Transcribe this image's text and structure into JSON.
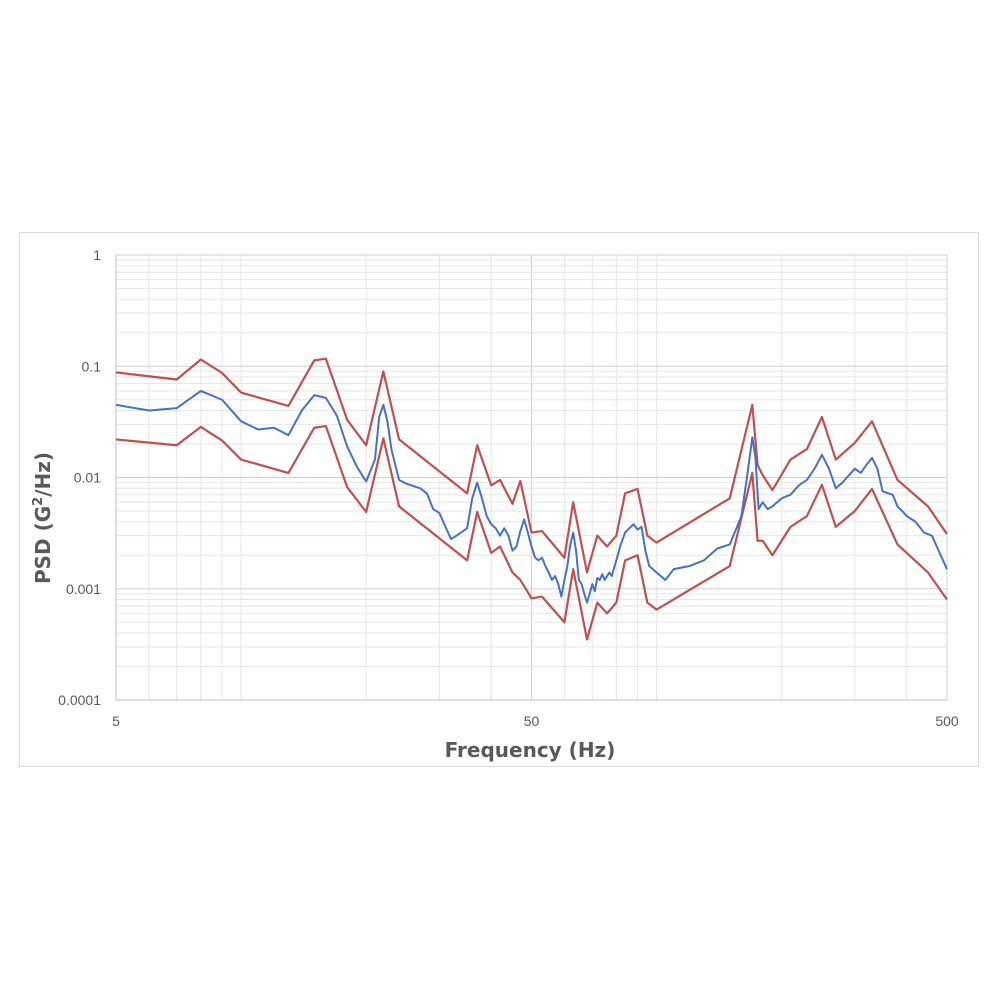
{
  "chart_data": {
    "type": "line",
    "title": "",
    "xlabel": "Frequency (Hz)",
    "ylabel_main": "PSD (G",
    "ylabel_sup": "2",
    "ylabel_tail": "/Hz)",
    "x_scale": "log",
    "y_scale": "log",
    "xlim": [
      5,
      500
    ],
    "ylim": [
      0.0001,
      1
    ],
    "x_ticks": [
      {
        "value": 5,
        "label": "5"
      },
      {
        "value": 50,
        "label": "50"
      },
      {
        "value": 500,
        "label": "500"
      }
    ],
    "y_ticks": [
      {
        "value": 1,
        "label": "1"
      },
      {
        "value": 0.1,
        "label": "0.1"
      },
      {
        "value": 0.01,
        "label": "0.01"
      },
      {
        "value": 0.001,
        "label": "0.001"
      },
      {
        "value": 0.0001,
        "label": "0.0001"
      }
    ],
    "grid": true,
    "legend": "none",
    "colors": {
      "measured": "#4472c4",
      "limits": "#c0504d",
      "grid_minor": "#e6e6e6",
      "grid_major": "#d0d0d0"
    },
    "series": [
      {
        "color": "#c0504d",
        "points": [
          [
            5,
            0.088
          ],
          [
            7,
            0.076
          ],
          [
            8,
            0.115
          ],
          [
            9,
            0.087
          ],
          [
            10,
            0.058
          ],
          [
            13,
            0.044
          ],
          [
            15,
            0.113
          ],
          [
            16,
            0.117
          ],
          [
            18,
            0.033
          ],
          [
            20,
            0.0195
          ],
          [
            22,
            0.09
          ],
          [
            24,
            0.022
          ],
          [
            35,
            0.0072
          ],
          [
            37,
            0.0195
          ],
          [
            40,
            0.0085
          ],
          [
            42,
            0.0095
          ],
          [
            45,
            0.0058
          ],
          [
            47,
            0.0093
          ],
          [
            50,
            0.0032
          ],
          [
            53,
            0.0033
          ],
          [
            60,
            0.0019
          ],
          [
            63,
            0.006
          ],
          [
            68,
            0.0014
          ],
          [
            72,
            0.003
          ],
          [
            76,
            0.0024
          ],
          [
            80,
            0.003
          ],
          [
            84,
            0.0072
          ],
          [
            90,
            0.0079
          ],
          [
            95,
            0.003
          ],
          [
            100,
            0.0026
          ],
          [
            150,
            0.0065
          ],
          [
            170,
            0.045
          ],
          [
            175,
            0.013
          ],
          [
            180,
            0.0105
          ],
          [
            190,
            0.0077
          ],
          [
            210,
            0.0145
          ],
          [
            230,
            0.018
          ],
          [
            250,
            0.035
          ],
          [
            270,
            0.0145
          ],
          [
            300,
            0.0205
          ],
          [
            330,
            0.032
          ],
          [
            380,
            0.0095
          ],
          [
            450,
            0.0055
          ],
          [
            500,
            0.0031
          ]
        ]
      },
      {
        "color": "#c0504d",
        "points": [
          [
            5,
            0.022
          ],
          [
            7,
            0.0195
          ],
          [
            8,
            0.0285
          ],
          [
            9,
            0.0215
          ],
          [
            10,
            0.0145
          ],
          [
            13,
            0.011
          ],
          [
            15,
            0.028
          ],
          [
            16,
            0.029
          ],
          [
            18,
            0.0082
          ],
          [
            20,
            0.0049
          ],
          [
            22,
            0.0225
          ],
          [
            24,
            0.0055
          ],
          [
            35,
            0.0018
          ],
          [
            37,
            0.0049
          ],
          [
            40,
            0.0021
          ],
          [
            42,
            0.0024
          ],
          [
            45,
            0.0014
          ],
          [
            47,
            0.0012
          ],
          [
            50,
            0.00082
          ],
          [
            53,
            0.00085
          ],
          [
            60,
            0.0005
          ],
          [
            63,
            0.0015
          ],
          [
            68,
            0.00035
          ],
          [
            72,
            0.00075
          ],
          [
            76,
            0.0006
          ],
          [
            80,
            0.00075
          ],
          [
            84,
            0.0018
          ],
          [
            90,
            0.002
          ],
          [
            95,
            0.00075
          ],
          [
            100,
            0.00065
          ],
          [
            150,
            0.0016
          ],
          [
            170,
            0.011
          ],
          [
            175,
            0.0027
          ],
          [
            180,
            0.0027
          ],
          [
            190,
            0.002
          ],
          [
            210,
            0.0036
          ],
          [
            230,
            0.0045
          ],
          [
            250,
            0.0086
          ],
          [
            270,
            0.0036
          ],
          [
            300,
            0.005
          ],
          [
            330,
            0.0079
          ],
          [
            380,
            0.0025
          ],
          [
            450,
            0.0014
          ],
          [
            500,
            0.0008
          ]
        ]
      },
      {
        "color": "#4472c4",
        "points": [
          [
            5,
            0.045
          ],
          [
            6,
            0.04
          ],
          [
            7,
            0.042
          ],
          [
            8,
            0.06
          ],
          [
            9,
            0.05
          ],
          [
            10,
            0.032
          ],
          [
            11,
            0.027
          ],
          [
            12,
            0.028
          ],
          [
            13,
            0.024
          ],
          [
            14,
            0.04
          ],
          [
            15,
            0.055
          ],
          [
            16,
            0.052
          ],
          [
            17,
            0.036
          ],
          [
            18,
            0.019
          ],
          [
            19,
            0.0125
          ],
          [
            20,
            0.0092
          ],
          [
            21,
            0.0145
          ],
          [
            21.5,
            0.035
          ],
          [
            22,
            0.045
          ],
          [
            22.5,
            0.032
          ],
          [
            23,
            0.018
          ],
          [
            24,
            0.0095
          ],
          [
            25,
            0.0088
          ],
          [
            27,
            0.008
          ],
          [
            28,
            0.0072
          ],
          [
            29,
            0.0052
          ],
          [
            30,
            0.0048
          ],
          [
            32,
            0.0028
          ],
          [
            33,
            0.003
          ],
          [
            35,
            0.0035
          ],
          [
            36,
            0.0065
          ],
          [
            37,
            0.009
          ],
          [
            38,
            0.0065
          ],
          [
            39,
            0.0045
          ],
          [
            40,
            0.0038
          ],
          [
            41,
            0.0035
          ],
          [
            42,
            0.003
          ],
          [
            43,
            0.0035
          ],
          [
            44,
            0.003
          ],
          [
            45,
            0.0022
          ],
          [
            46,
            0.0024
          ],
          [
            47,
            0.0033
          ],
          [
            48,
            0.0042
          ],
          [
            49,
            0.0032
          ],
          [
            50,
            0.0024
          ],
          [
            51,
            0.0019
          ],
          [
            52,
            0.0018
          ],
          [
            53,
            0.0019
          ],
          [
            54,
            0.0016
          ],
          [
            55,
            0.0014
          ],
          [
            56,
            0.0012
          ],
          [
            57,
            0.0013
          ],
          [
            58,
            0.0011
          ],
          [
            59,
            0.00085
          ],
          [
            60,
            0.0012
          ],
          [
            61,
            0.0016
          ],
          [
            62,
            0.0025
          ],
          [
            63,
            0.0032
          ],
          [
            64,
            0.0022
          ],
          [
            65,
            0.0012
          ],
          [
            66,
            0.0011
          ],
          [
            67,
            0.0009
          ],
          [
            68,
            0.00075
          ],
          [
            69,
            0.0009
          ],
          [
            70,
            0.0011
          ],
          [
            71,
            0.00095
          ],
          [
            72,
            0.00125
          ],
          [
            73,
            0.0012
          ],
          [
            74,
            0.00135
          ],
          [
            75,
            0.0012
          ],
          [
            76,
            0.0013
          ],
          [
            77,
            0.0014
          ],
          [
            78,
            0.0013
          ],
          [
            80,
            0.0018
          ],
          [
            82,
            0.0025
          ],
          [
            84,
            0.0032
          ],
          [
            86,
            0.0035
          ],
          [
            88,
            0.0038
          ],
          [
            90,
            0.0034
          ],
          [
            92,
            0.0036
          ],
          [
            94,
            0.0022
          ],
          [
            96,
            0.0016
          ],
          [
            100,
            0.0014
          ],
          [
            105,
            0.0012
          ],
          [
            110,
            0.0015
          ],
          [
            120,
            0.0016
          ],
          [
            130,
            0.0018
          ],
          [
            140,
            0.0023
          ],
          [
            150,
            0.0025
          ],
          [
            160,
            0.0045
          ],
          [
            165,
            0.01
          ],
          [
            170,
            0.023
          ],
          [
            173,
            0.015
          ],
          [
            176,
            0.0052
          ],
          [
            180,
            0.006
          ],
          [
            185,
            0.0052
          ],
          [
            190,
            0.0055
          ],
          [
            200,
            0.0065
          ],
          [
            210,
            0.007
          ],
          [
            220,
            0.0085
          ],
          [
            230,
            0.0095
          ],
          [
            240,
            0.012
          ],
          [
            250,
            0.016
          ],
          [
            260,
            0.012
          ],
          [
            270,
            0.008
          ],
          [
            280,
            0.009
          ],
          [
            300,
            0.012
          ],
          [
            310,
            0.011
          ],
          [
            320,
            0.013
          ],
          [
            330,
            0.015
          ],
          [
            340,
            0.012
          ],
          [
            350,
            0.0075
          ],
          [
            370,
            0.007
          ],
          [
            380,
            0.0055
          ],
          [
            390,
            0.005
          ],
          [
            400,
            0.0045
          ],
          [
            420,
            0.004
          ],
          [
            440,
            0.0032
          ],
          [
            460,
            0.003
          ],
          [
            480,
            0.0021
          ],
          [
            500,
            0.0015
          ]
        ]
      }
    ]
  }
}
